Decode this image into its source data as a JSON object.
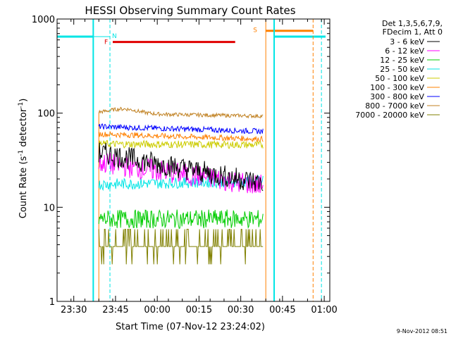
{
  "chart_data": {
    "type": "line",
    "title": "HESSI Observing Summary Count Rates",
    "xlabel": "Start Time (07-Nov-12 23:24:02)",
    "ylabel_main": "Count Rate (s",
    "ylabel_sup": "-1",
    "ylabel_mid": " detector",
    "ylabel_sup2": "-1",
    "ylabel_end": ")",
    "y_scale": "log",
    "ylim": [
      1,
      1000
    ],
    "xlim": [
      "23:24",
      "01:02"
    ],
    "x_ticks": [
      "23:30",
      "23:45",
      "00:00",
      "00:15",
      "00:30",
      "00:45",
      "01:00"
    ],
    "y_ticks": [
      "1",
      "10",
      "100",
      "1000"
    ],
    "grid": false,
    "legend_position": "top-right",
    "legend_header": [
      "Det 1,3,5,6,7,9,",
      "FDecim 1, Att 0"
    ],
    "series": [
      {
        "name": "3 - 6 keV",
        "color": "#000000",
        "base": 38,
        "end": 18,
        "noise": 0.12
      },
      {
        "name": "6 - 12 keV",
        "color": "#ff00ff",
        "base": 30,
        "end": 17,
        "noise": 0.12
      },
      {
        "name": "12 - 25 keV",
        "color": "#00cc00",
        "base": 7.5,
        "end": 7.5,
        "noise": 0.1
      },
      {
        "name": "25 - 50 keV",
        "color": "#00e5e5",
        "base": 17.5,
        "end": 19,
        "noise": 0.06
      },
      {
        "name": "50 - 100 keV",
        "color": "#cccc00",
        "base": 47,
        "end": 46,
        "noise": 0.04
      },
      {
        "name": "100 - 300 keV",
        "color": "#ff8000",
        "base": 60,
        "end": 53,
        "noise": 0.03
      },
      {
        "name": "300 - 800 keV",
        "color": "#0000ff",
        "base": 72,
        "end": 64,
        "noise": 0.03
      },
      {
        "name": "800 - 7000 keV",
        "color": "#c08020",
        "base": 100,
        "end": 93,
        "noise": 0.02
      },
      {
        "name": "7000 - 20000 keV",
        "color": "#808000",
        "base": 4.5,
        "end": 4.5,
        "noise": 0.15
      }
    ],
    "flag_bars": [
      {
        "label": "N",
        "color": "#00e5e5",
        "value": 650
      },
      {
        "label": "F",
        "color": "#e00000",
        "value": 570
      },
      {
        "label": "S",
        "color": "#ff8000",
        "value": 750
      }
    ],
    "timestamp": "9-Nov-2012 08:51"
  }
}
